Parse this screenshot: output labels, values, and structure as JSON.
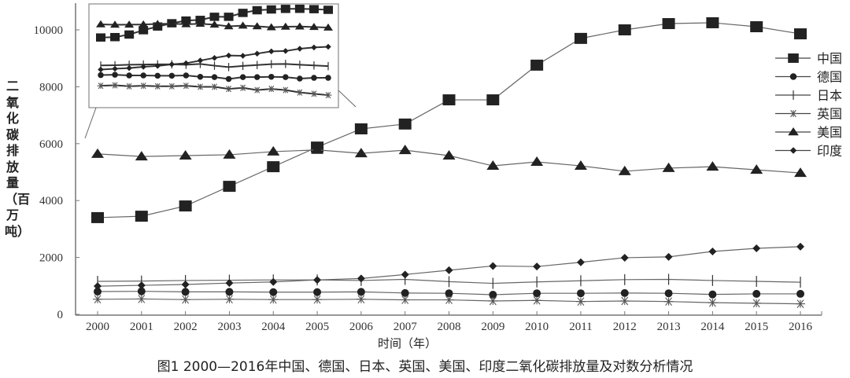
{
  "chart_data": {
    "type": "line",
    "title": "",
    "caption": "图1  2000—2016年中国、德国、日本、英国、美国、印度二氧化碳排放量及对数分析情况",
    "xlabel": "时间（年）",
    "ylabel": "二氧化碳排放量（百万吨）",
    "ylim": [
      0,
      11000
    ],
    "yticks": [
      0,
      2000,
      4000,
      6000,
      8000,
      10000
    ],
    "grid": false,
    "legend_position": "right",
    "categories": [
      "2000",
      "2001",
      "2002",
      "2003",
      "2004",
      "2005",
      "2006",
      "2007",
      "2008",
      "2009",
      "2010",
      "2011",
      "2012",
      "2013",
      "2014",
      "2015",
      "2016"
    ],
    "series": [
      {
        "name": "中国",
        "marker": "square",
        "values": [
          3400,
          3450,
          3810,
          4500,
          5190,
          5880,
          6520,
          6690,
          7540,
          7540,
          8760,
          9700,
          10000,
          10220,
          10250,
          10110,
          9860
        ]
      },
      {
        "name": "德国",
        "marker": "circle",
        "values": [
          800,
          810,
          790,
          790,
          780,
          780,
          790,
          750,
          740,
          690,
          740,
          740,
          750,
          740,
          700,
          720,
          720
        ]
      },
      {
        "name": "日本",
        "marker": "plus",
        "values": [
          1160,
          1170,
          1190,
          1200,
          1210,
          1210,
          1190,
          1230,
          1150,
          1090,
          1140,
          1180,
          1220,
          1230,
          1190,
          1160,
          1130
        ]
      },
      {
        "name": "英国",
        "marker": "asterisk",
        "values": [
          530,
          540,
          520,
          530,
          520,
          520,
          530,
          510,
          510,
          470,
          490,
          450,
          470,
          450,
          410,
          390,
          370
        ]
      },
      {
        "name": "美国",
        "marker": "triangle",
        "values": [
          5640,
          5550,
          5580,
          5610,
          5720,
          5780,
          5660,
          5770,
          5580,
          5220,
          5360,
          5220,
          5030,
          5140,
          5190,
          5080,
          4970
        ]
      },
      {
        "name": "印度",
        "marker": "diamond",
        "values": [
          990,
          1020,
          1050,
          1100,
          1140,
          1210,
          1260,
          1400,
          1550,
          1700,
          1680,
          1830,
          1990,
          2020,
          2210,
          2320,
          2380
        ]
      }
    ],
    "inset": {
      "description": "对数分析情况（放大图）",
      "series_order_top_to_bottom_end": [
        "中国",
        "美国",
        "印度",
        "日本",
        "德国",
        "英国"
      ]
    }
  },
  "axis": {
    "y_ticks": [
      "0",
      "2000",
      "4000",
      "6000",
      "8000",
      "10000"
    ],
    "x_ticks": [
      "2000",
      "2001",
      "2002",
      "2003",
      "2004",
      "2005",
      "2006",
      "2007",
      "2008",
      "2009",
      "2010",
      "2011",
      "2012",
      "2013",
      "2014",
      "2015",
      "2016"
    ]
  },
  "labels": {
    "ylabel": "二氧化碳排放量（百万吨）",
    "xlabel": "时间（年）",
    "caption": "图1  2000—2016年中国、德国、日本、英国、美国、印度二氧化碳排放量及对数分析情况"
  },
  "legend": [
    {
      "label": "中国",
      "marker": "square"
    },
    {
      "label": "德国",
      "marker": "circle"
    },
    {
      "label": "日本",
      "marker": "plus"
    },
    {
      "label": "英国",
      "marker": "asterisk"
    },
    {
      "label": "美国",
      "marker": "triangle"
    },
    {
      "label": "印度",
      "marker": "diamond"
    }
  ]
}
